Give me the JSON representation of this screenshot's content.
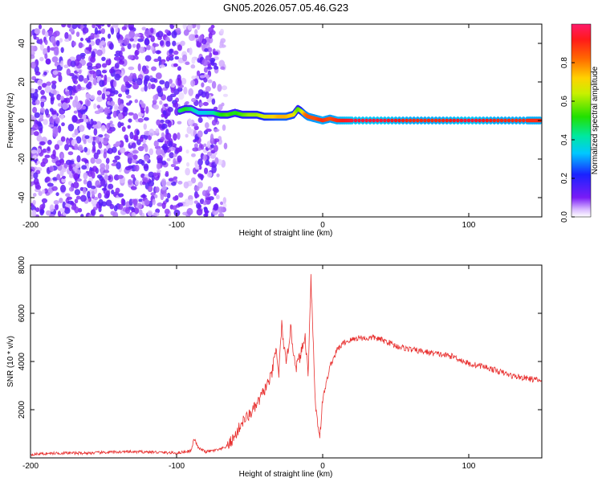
{
  "title": "GN05.2026.057.05.46.G23",
  "colors": {
    "snr_line": "#e8302f",
    "spectrum_low": "#7a1cf6",
    "spectrum_track": "#e8283c",
    "axis": "#000000"
  },
  "colorbar": {
    "label": "Normalized spectral amplitude",
    "ticks": [
      "0.0",
      "0.2",
      "0.4",
      "0.6",
      "0.8"
    ],
    "tick_values": [
      0.0,
      0.2,
      0.4,
      0.6,
      0.8
    ],
    "range": [
      0,
      1
    ]
  },
  "chart_data": [
    {
      "type": "heatmap",
      "xlabel": "Height of straight line (km)",
      "ylabel": "Frequency (Hz)",
      "xlim": [
        -200,
        150
      ],
      "ylim": [
        -50,
        50
      ],
      "x_ticks": [
        -200,
        -100,
        0,
        100
      ],
      "y_ticks": [
        -40,
        -20,
        0,
        20,
        40
      ],
      "x_tick_labels": [
        "-200",
        "-100",
        "0",
        "100"
      ],
      "y_tick_labels": [
        "-40",
        "-20",
        "0",
        "20",
        "40"
      ],
      "colormap": "rainbow (purple=0 to red=1)",
      "noise_region_x": [
        -200,
        -65
      ],
      "track": {
        "x": [
          -98,
          -94,
          -90,
          -85,
          -80,
          -75,
          -70,
          -65,
          -60,
          -55,
          -50,
          -45,
          -40,
          -35,
          -30,
          -25,
          -20,
          -17,
          -15,
          -12,
          -10,
          -5,
          0,
          5,
          10,
          20,
          40,
          60,
          80,
          100,
          120,
          140,
          150
        ],
        "freq_hz": [
          5,
          6,
          6,
          4,
          4,
          4,
          3,
          3,
          4,
          3,
          3,
          3,
          2,
          2,
          2,
          2,
          3,
          6,
          5,
          3,
          2,
          1,
          0,
          1,
          0,
          0,
          0,
          0,
          0,
          0,
          0,
          0,
          0
        ],
        "amplitude": [
          0.45,
          0.5,
          0.45,
          0.35,
          0.35,
          0.4,
          0.5,
          0.55,
          0.5,
          0.55,
          0.6,
          0.6,
          0.65,
          0.7,
          0.75,
          0.75,
          0.7,
          0.55,
          0.6,
          0.8,
          0.85,
          0.85,
          0.9,
          0.85,
          0.9,
          0.95,
          0.95,
          0.9,
          0.9,
          0.95,
          0.9,
          0.9,
          0.9
        ]
      }
    },
    {
      "type": "line",
      "xlabel": "Height of straight line (km)",
      "ylabel": "SNR (10 * v/v)",
      "xlim": [
        -200,
        150
      ],
      "ylim": [
        0,
        8000
      ],
      "x_ticks": [
        -200,
        -100,
        0,
        100
      ],
      "y_ticks": [
        2000,
        4000,
        6000,
        8000
      ],
      "x_tick_labels": [
        "-200",
        "-100",
        "0",
        "100"
      ],
      "y_tick_labels": [
        "2000",
        "4000",
        "6000",
        "8000"
      ],
      "series": [
        {
          "x": [
            -200,
            -180,
            -160,
            -140,
            -120,
            -100,
            -90,
            -88,
            -85,
            -80,
            -75,
            -70,
            -65,
            -60,
            -55,
            -50,
            -45,
            -40,
            -35,
            -32,
            -30,
            -28,
            -25,
            -22,
            -20,
            -18,
            -15,
            -12,
            -10,
            -8,
            -5,
            -2,
            0,
            5,
            10,
            15,
            20,
            25,
            30,
            35,
            40,
            45,
            50,
            60,
            70,
            80,
            90,
            100,
            110,
            120,
            130,
            140,
            150
          ],
          "y": [
            150,
            200,
            200,
            250,
            250,
            200,
            300,
            800,
            400,
            250,
            300,
            350,
            500,
            900,
            1500,
            1800,
            2200,
            2800,
            3400,
            4500,
            3500,
            5500,
            3800,
            5400,
            4400,
            3800,
            4300,
            5000,
            3500,
            7500,
            2200,
            900,
            2400,
            3800,
            4500,
            4800,
            4900,
            5000,
            4950,
            5000,
            4900,
            4800,
            4650,
            4500,
            4400,
            4300,
            4200,
            3900,
            3800,
            3600,
            3400,
            3300,
            3200
          ]
        }
      ]
    }
  ]
}
